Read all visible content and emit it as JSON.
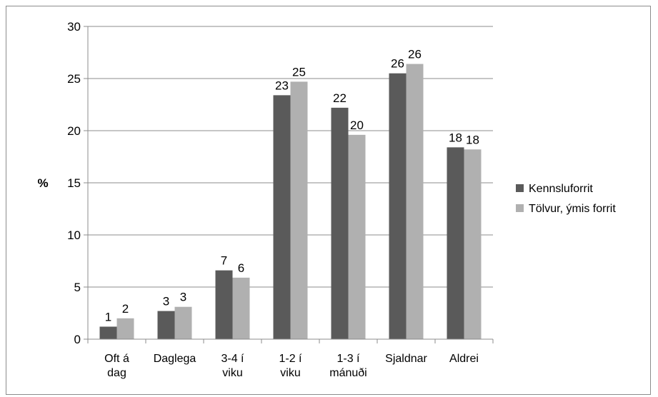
{
  "chart_data": {
    "type": "bar",
    "ylabel": "%",
    "ylim": [
      0,
      30
    ],
    "yticks": [
      0,
      5,
      10,
      15,
      20,
      25,
      30
    ],
    "grid": true,
    "legend_position": "right",
    "categories": [
      [
        "Oft á",
        "dag"
      ],
      [
        "Daglega"
      ],
      [
        "3-4 í",
        "viku"
      ],
      [
        "1-2 í",
        "viku"
      ],
      [
        "1-3 í",
        "mánuði"
      ],
      [
        "Sjaldnar"
      ],
      [
        "Aldrei"
      ]
    ],
    "series": [
      {
        "name": "Kennsluforrit",
        "color": "#5a5a5a",
        "values": [
          1.2,
          2.7,
          6.6,
          23.4,
          22.2,
          25.5,
          18.4
        ],
        "labels": [
          "1",
          "3",
          "7",
          "23",
          "22",
          "26",
          "18"
        ]
      },
      {
        "name": "Tölvur, ýmis forrit",
        "color": "#b0b0b0",
        "values": [
          2.0,
          3.1,
          5.9,
          24.7,
          19.6,
          26.4,
          18.2
        ],
        "labels": [
          "2",
          "3",
          "6",
          "25",
          "20",
          "26",
          "18"
        ]
      }
    ]
  }
}
